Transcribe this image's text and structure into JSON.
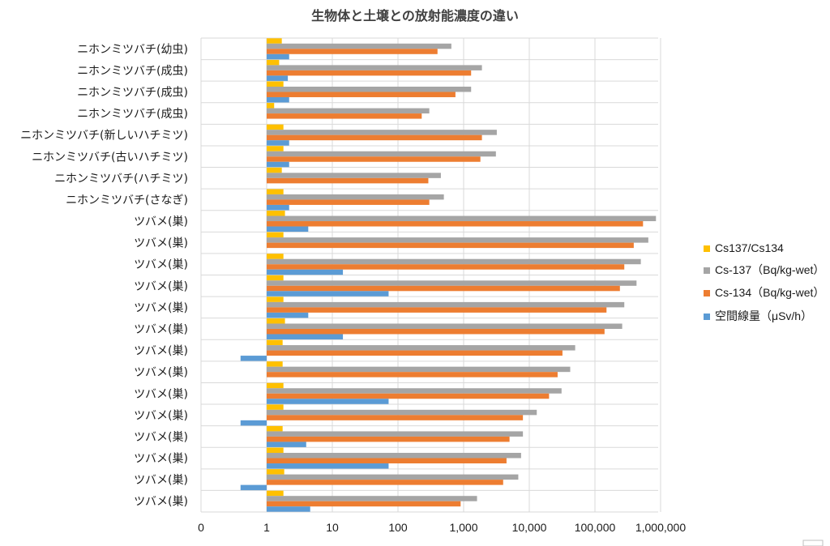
{
  "chart_data": {
    "type": "bar",
    "orientation": "horizontal",
    "title": "生物体と土壌との放射能濃度の違い",
    "x_scale": "log",
    "xlim": [
      0.1,
      1000000
    ],
    "x_ticks": [
      {
        "value": 0.1,
        "label": "0"
      },
      {
        "value": 1,
        "label": "1"
      },
      {
        "value": 10,
        "label": "10"
      },
      {
        "value": 100,
        "label": "100"
      },
      {
        "value": 1000,
        "label": "1,000"
      },
      {
        "value": 10000,
        "label": "10,000"
      },
      {
        "value": 100000,
        "label": "100,000"
      },
      {
        "value": 1000000,
        "label": "1,000,000"
      }
    ],
    "grid": true,
    "legend_position": "right",
    "categories": [
      "ニホンミツバチ(幼虫)",
      "ニホンミツバチ(成虫)",
      "ニホンミツバチ(成虫)",
      "ニホンミツバチ(成虫)",
      "ニホンミツバチ(新しいハチミツ)",
      "ニホンミツバチ(古いハチミツ)",
      "ニホンミツバチ(ハチミツ)",
      "ニホンミツバチ(さなぎ)",
      "ツバメ(巣)",
      "ツバメ(巣)",
      "ツバメ(巣)",
      "ツバメ(巣)",
      "ツバメ(巣)",
      "ツバメ(巣)",
      "ツバメ(巣)",
      "ツバメ(巣)",
      "ツバメ(巣)",
      "ツバメ(巣)",
      "ツバメ(巣)",
      "ツバメ(巣)",
      "ツバメ(巣)",
      "ツバメ(巣)"
    ],
    "series": [
      {
        "name": "Cs137/Cs134",
        "color": "#FFC000",
        "values": [
          1.7,
          1.55,
          1.8,
          1.3,
          1.8,
          1.8,
          1.7,
          1.8,
          1.9,
          1.8,
          1.8,
          1.8,
          1.8,
          1.9,
          1.75,
          1.75,
          1.8,
          1.8,
          1.75,
          1.8,
          1.85,
          1.8
        ]
      },
      {
        "name": "Cs-137（Bq/kg-wet）",
        "color": "#A5A5A5",
        "values": [
          650,
          1900,
          1300,
          300,
          3200,
          3100,
          450,
          500,
          850000,
          650000,
          500000,
          430000,
          280000,
          260000,
          50000,
          42000,
          31000,
          13000,
          8000,
          7500,
          6800,
          1600
        ]
      },
      {
        "name": "Cs-134（Bq/kg-wet）",
        "color": "#ED7D31",
        "values": [
          400,
          1300,
          750,
          230,
          1900,
          1800,
          290,
          300,
          540000,
          390000,
          280000,
          240000,
          150000,
          140000,
          32000,
          27000,
          20000,
          8000,
          5000,
          4500,
          4000,
          900
        ]
      },
      {
        "name": "空間線量（μSv/h）",
        "color": "#5B9BD5",
        "values": [
          2.2,
          2.1,
          2.2,
          null,
          2.2,
          2.2,
          null,
          2.2,
          4.3,
          null,
          14.5,
          72,
          4.3,
          14.5,
          0.4,
          null,
          72,
          0.4,
          4.0,
          72,
          0.4,
          4.6
        ]
      }
    ]
  }
}
